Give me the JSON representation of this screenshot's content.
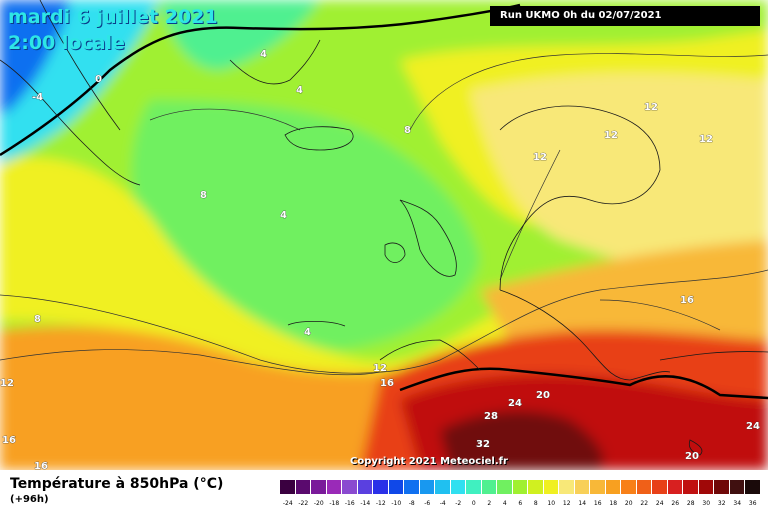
{
  "title": {
    "date": "mardi 6 juillet 2021",
    "time": "2:00 locale"
  },
  "run_info": "Run UKMO 0h du 02/07/2021",
  "copyright": "Copyright 2021 Meteociel.fr",
  "legend": {
    "title": "Température à 850hPa (°C)",
    "subtitle": "(+96h)",
    "scale": [
      {
        "v": "-24",
        "c": "#3a0040"
      },
      {
        "v": "-22",
        "c": "#5a0a6e"
      },
      {
        "v": "-20",
        "c": "#7a1a9a"
      },
      {
        "v": "-18",
        "c": "#9a2ab8"
      },
      {
        "v": "-16",
        "c": "#8a4ad0"
      },
      {
        "v": "-14",
        "c": "#5a40e0"
      },
      {
        "v": "-12",
        "c": "#2a30e8"
      },
      {
        "v": "-10",
        "c": "#1048e8"
      },
      {
        "v": "-8",
        "c": "#1070f0"
      },
      {
        "v": "-6",
        "c": "#1898f0"
      },
      {
        "v": "-4",
        "c": "#20c0f0"
      },
      {
        "v": "-2",
        "c": "#30e0f0"
      },
      {
        "v": "0",
        "c": "#40f0c0"
      },
      {
        "v": "2",
        "c": "#50f090"
      },
      {
        "v": "4",
        "c": "#70f060"
      },
      {
        "v": "6",
        "c": "#a0f030"
      },
      {
        "v": "8",
        "c": "#d0f020"
      },
      {
        "v": "10",
        "c": "#f0f020"
      },
      {
        "v": "12",
        "c": "#f8e878"
      },
      {
        "v": "14",
        "c": "#f8d058"
      },
      {
        "v": "16",
        "c": "#f8b838"
      },
      {
        "v": "18",
        "c": "#f8a020"
      },
      {
        "v": "20",
        "c": "#f88018"
      },
      {
        "v": "22",
        "c": "#f06018"
      },
      {
        "v": "24",
        "c": "#e84018"
      },
      {
        "v": "26",
        "c": "#d82020"
      },
      {
        "v": "28",
        "c": "#c01010"
      },
      {
        "v": "30",
        "c": "#a00808"
      },
      {
        "v": "32",
        "c": "#700808"
      },
      {
        "v": "34",
        "c": "#401010"
      },
      {
        "v": "36",
        "c": "#1a0a0a"
      }
    ]
  },
  "contour_labels": [
    {
      "text": "-4"
    },
    {
      "text": "0"
    },
    {
      "text": "4"
    },
    {
      "text": "4"
    },
    {
      "text": "4"
    },
    {
      "text": "8"
    },
    {
      "text": "8"
    },
    {
      "text": "4"
    },
    {
      "text": "12"
    },
    {
      "text": "12"
    },
    {
      "text": "12"
    },
    {
      "text": "12"
    },
    {
      "text": "16"
    },
    {
      "text": "8"
    },
    {
      "text": "12"
    },
    {
      "text": "12"
    },
    {
      "text": "16"
    },
    {
      "text": "24"
    },
    {
      "text": "20"
    },
    {
      "text": "28"
    },
    {
      "text": "32"
    },
    {
      "text": "20"
    },
    {
      "text": "24"
    },
    {
      "text": "16"
    },
    {
      "text": "16"
    }
  ]
}
